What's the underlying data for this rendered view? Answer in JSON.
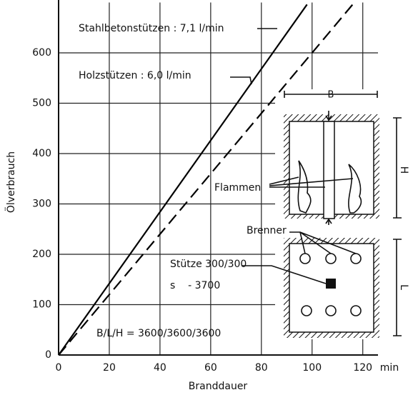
{
  "chart_data": {
    "type": "line",
    "x_label": "Branddauer",
    "x_unit": "min",
    "y_label": "Ölverbrauch",
    "xlim": [
      0,
      126
    ],
    "ylim": [
      0,
      700
    ],
    "xticks": [
      0,
      20,
      40,
      60,
      80,
      100,
      120
    ],
    "yticks": [
      0,
      100,
      200,
      300,
      400,
      500,
      600
    ],
    "grid": true,
    "series": [
      {
        "name": "Stahlbetonstützen : 7,1 l/min",
        "color": "#000000",
        "dashed": false,
        "x": [
          0,
          98
        ],
        "values": [
          0,
          696
        ]
      },
      {
        "name": "Holzstützen : 6,0 l/min",
        "color": "#000000",
        "dashed": true,
        "x": [
          0,
          117
        ],
        "values": [
          0,
          702
        ]
      }
    ],
    "annotations": {
      "dimension_b": "B",
      "dimension_h": "H",
      "dimension_l": "L",
      "flames": "Flammen",
      "burner": "Brenner",
      "column": "Stütze 300/300",
      "thickness": "s    - 3700",
      "room": "B/L/H = 3600/3600/3600"
    }
  }
}
